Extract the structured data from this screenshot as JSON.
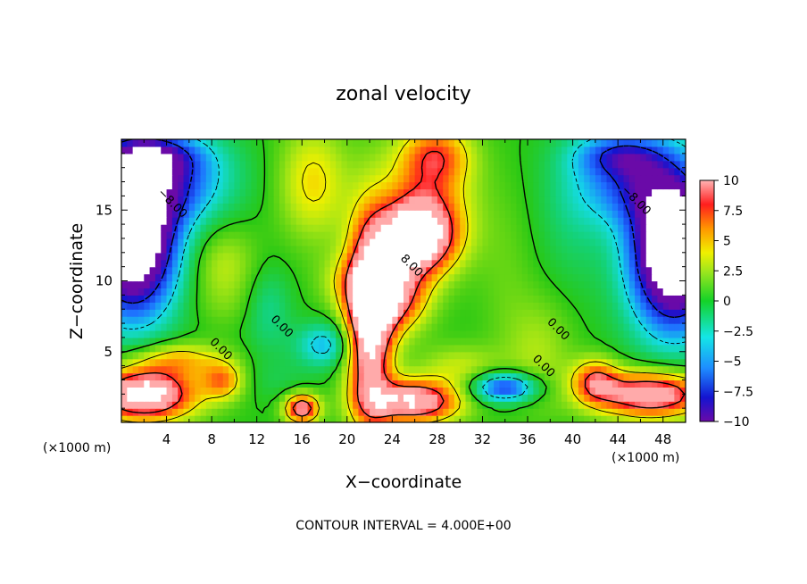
{
  "chart_data": {
    "type": "heatmap",
    "title": "zonal velocity",
    "xlabel": "X−coordinate",
    "ylabel": "Z−coordinate",
    "x_unit_left": "(×1000 m)",
    "x_unit_right": "(×1000 m)",
    "xlim": [
      0,
      50
    ],
    "ylim": [
      0,
      20
    ],
    "x_ticks": [
      4,
      8,
      12,
      16,
      20,
      24,
      28,
      32,
      36,
      40,
      44,
      48
    ],
    "y_ticks": [
      5,
      10,
      15
    ],
    "colorbar": {
      "ticks": [
        10,
        7.5,
        5,
        2.5,
        0,
        -2.5,
        -5,
        -7.5,
        -10
      ],
      "tick_labels": [
        "10",
        "7.5",
        "5",
        "2.5",
        "0",
        "−2.5",
        "−5",
        "−7.5",
        "−10"
      ],
      "range": [
        -10,
        10
      ]
    },
    "contour_labels": [
      {
        "text": "−8.00",
        "x": 4.3,
        "z": 15.3
      },
      {
        "text": "8.00",
        "x": 25.5,
        "z": 10.9
      },
      {
        "text": "0.00",
        "x": 8.6,
        "z": 5.0
      },
      {
        "text": "0.00",
        "x": 14.0,
        "z": 6.6
      },
      {
        "text": "0.00",
        "x": 38.5,
        "z": 6.4
      },
      {
        "text": "0.00",
        "x": 37.2,
        "z": 3.8
      },
      {
        "text": "−8.00",
        "x": 45.4,
        "z": 15.5
      }
    ],
    "footer": "CONTOUR INTERVAL = 4.000E+00"
  }
}
